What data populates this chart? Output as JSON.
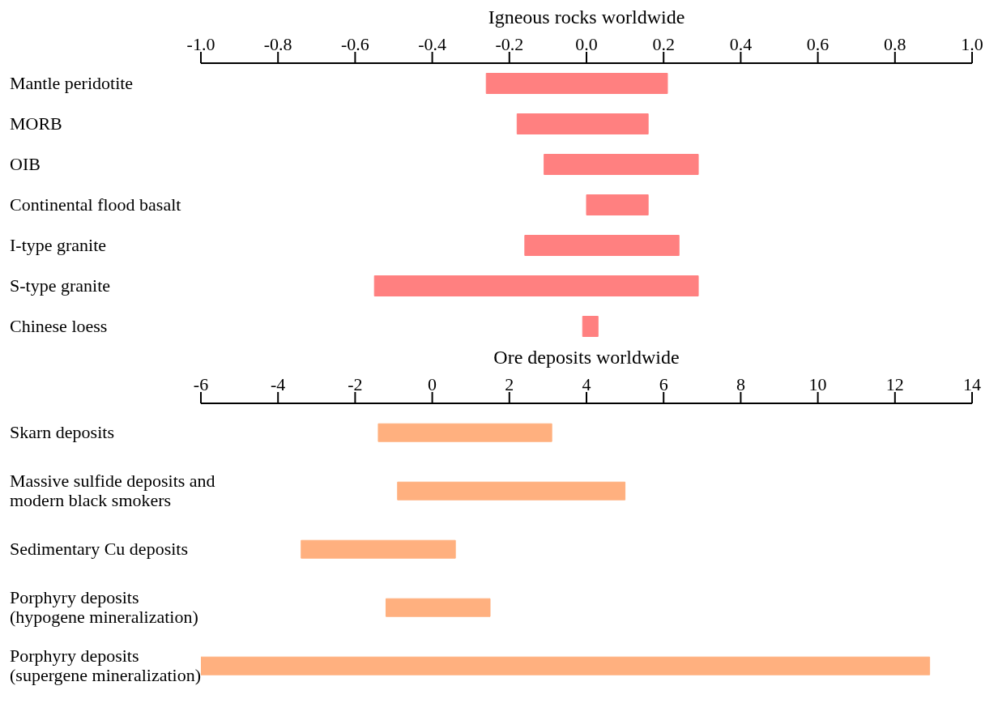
{
  "chart_data": [
    {
      "type": "bar",
      "orientation": "horizontal",
      "title": "Igneous rocks worldwide",
      "categories": [
        "Mantle peridotite",
        "MORB",
        "OIB",
        "Continental flood basalt",
        "I-type granite",
        "S-type granite",
        "Chinese loess"
      ],
      "base": [
        -0.26,
        -0.18,
        -0.11,
        0.0,
        -0.16,
        -0.55,
        -0.01
      ],
      "values": [
        0.47,
        0.34,
        0.4,
        0.16,
        0.4,
        0.84,
        0.04
      ],
      "color": "#ff8080",
      "xlim": [
        -1.0,
        1.0
      ],
      "xticks": [
        {
          "value": -1,
          "label": "-1.0"
        },
        -0.8,
        -0.6,
        -0.4,
        -0.2,
        {
          "value": 0,
          "label": "0.0"
        },
        0.2,
        0.4,
        0.6,
        0.8,
        {
          "value": 1,
          "label": "1.0"
        }
      ],
      "grid": false,
      "legend": false
    },
    {
      "type": "bar",
      "orientation": "horizontal",
      "title": "Ore deposits worldwide",
      "categories": [
        "Skarn deposits",
        "Massive sulfide deposits and modern black smokers",
        "Sedimentary Cu deposits",
        "Porphyry deposits (hypogene mineralization)",
        "Porphyry deposits (supergene mineralization)"
      ],
      "base": [
        -1.4,
        -0.9,
        -3.4,
        -1.2,
        -6.0
      ],
      "values": [
        4.5,
        5.9,
        4.0,
        2.7,
        18.9
      ],
      "color": "#ffb07f",
      "xlim": [
        -6,
        14
      ],
      "xticks": [
        -6,
        -4,
        -2,
        0,
        2,
        4,
        6,
        8,
        10,
        12,
        14
      ],
      "grid": false,
      "legend": false
    }
  ]
}
